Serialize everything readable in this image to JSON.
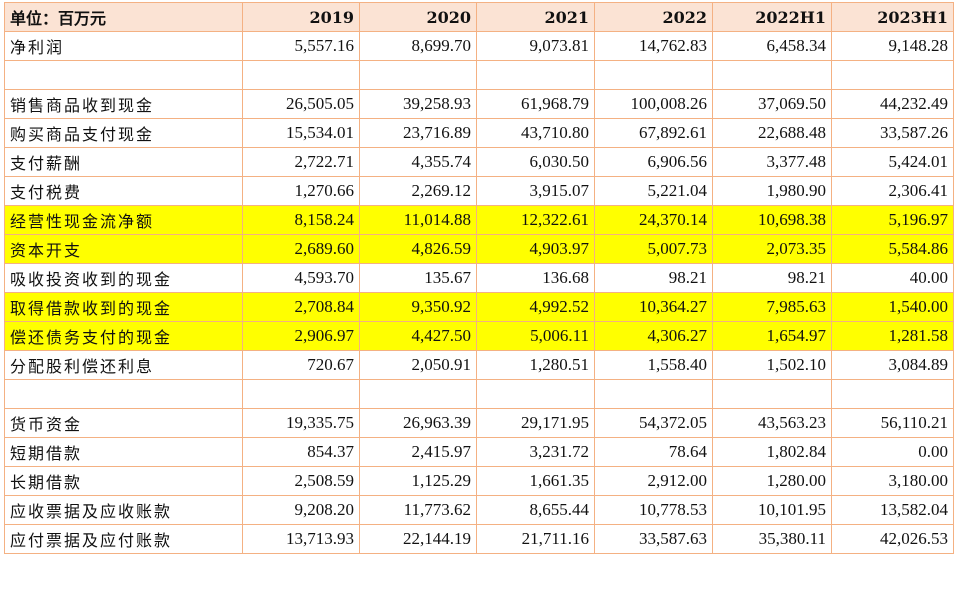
{
  "table": {
    "headers": [
      "单位：百万元",
      "2019",
      "2020",
      "2021",
      "2022",
      "2022H1",
      "2023H1"
    ],
    "rows": [
      {
        "label": "净利润",
        "values": [
          "5,557.16",
          "8,699.70",
          "9,073.81",
          "14,762.83",
          "6,458.34",
          "9,148.28"
        ],
        "highlight": false
      },
      {
        "label": "",
        "values": [
          "",
          "",
          "",
          "",
          "",
          ""
        ],
        "highlight": false
      },
      {
        "label": "销售商品收到现金",
        "values": [
          "26,505.05",
          "39,258.93",
          "61,968.79",
          "100,008.26",
          "37,069.50",
          "44,232.49"
        ],
        "highlight": false
      },
      {
        "label": "购买商品支付现金",
        "values": [
          "15,534.01",
          "23,716.89",
          "43,710.80",
          "67,892.61",
          "22,688.48",
          "33,587.26"
        ],
        "highlight": false
      },
      {
        "label": "支付薪酬",
        "values": [
          "2,722.71",
          "4,355.74",
          "6,030.50",
          "6,906.56",
          "3,377.48",
          "5,424.01"
        ],
        "highlight": false
      },
      {
        "label": "支付税费",
        "values": [
          "1,270.66",
          "2,269.12",
          "3,915.07",
          "5,221.04",
          "1,980.90",
          "2,306.41"
        ],
        "highlight": false
      },
      {
        "label": "经营性现金流净额",
        "values": [
          "8,158.24",
          "11,014.88",
          "12,322.61",
          "24,370.14",
          "10,698.38",
          "5,196.97"
        ],
        "highlight": true
      },
      {
        "label": "资本开支",
        "values": [
          "2,689.60",
          "4,826.59",
          "4,903.97",
          "5,007.73",
          "2,073.35",
          "5,584.86"
        ],
        "highlight": true
      },
      {
        "label": "吸收投资收到的现金",
        "values": [
          "4,593.70",
          "135.67",
          "136.68",
          "98.21",
          "98.21",
          "40.00"
        ],
        "highlight": false
      },
      {
        "label": "取得借款收到的现金",
        "values": [
          "2,708.84",
          "9,350.92",
          "4,992.52",
          "10,364.27",
          "7,985.63",
          "1,540.00"
        ],
        "highlight": true
      },
      {
        "label": "偿还债务支付的现金",
        "values": [
          "2,906.97",
          "4,427.50",
          "5,006.11",
          "4,306.27",
          "1,654.97",
          "1,281.58"
        ],
        "highlight": true
      },
      {
        "label": "分配股利偿还利息",
        "values": [
          "720.67",
          "2,050.91",
          "1,280.51",
          "1,558.40",
          "1,502.10",
          "3,084.89"
        ],
        "highlight": false
      },
      {
        "label": "",
        "values": [
          "",
          "",
          "",
          "",
          "",
          ""
        ],
        "highlight": false
      },
      {
        "label": "货币资金",
        "values": [
          "19,335.75",
          "26,963.39",
          "29,171.95",
          "54,372.05",
          "43,563.23",
          "56,110.21"
        ],
        "highlight": false
      },
      {
        "label": "短期借款",
        "values": [
          "854.37",
          "2,415.97",
          "3,231.72",
          "78.64",
          "1,802.84",
          "0.00"
        ],
        "highlight": false
      },
      {
        "label": "长期借款",
        "values": [
          "2,508.59",
          "1,125.29",
          "1,661.35",
          "2,912.00",
          "1,280.00",
          "3,180.00"
        ],
        "highlight": false
      },
      {
        "label": "应收票据及应收账款",
        "values": [
          "9,208.20",
          "11,773.62",
          "8,655.44",
          "10,778.53",
          "10,101.95",
          "13,582.04"
        ],
        "highlight": false
      },
      {
        "label": "应付票据及应付账款",
        "values": [
          "13,713.93",
          "22,144.19",
          "21,711.16",
          "33,587.63",
          "35,380.11",
          "42,026.53"
        ],
        "highlight": false
      }
    ],
    "colors": {
      "header_bg": "#fbe3d4",
      "border": "#f4b183",
      "highlight": "#ffff00"
    }
  }
}
